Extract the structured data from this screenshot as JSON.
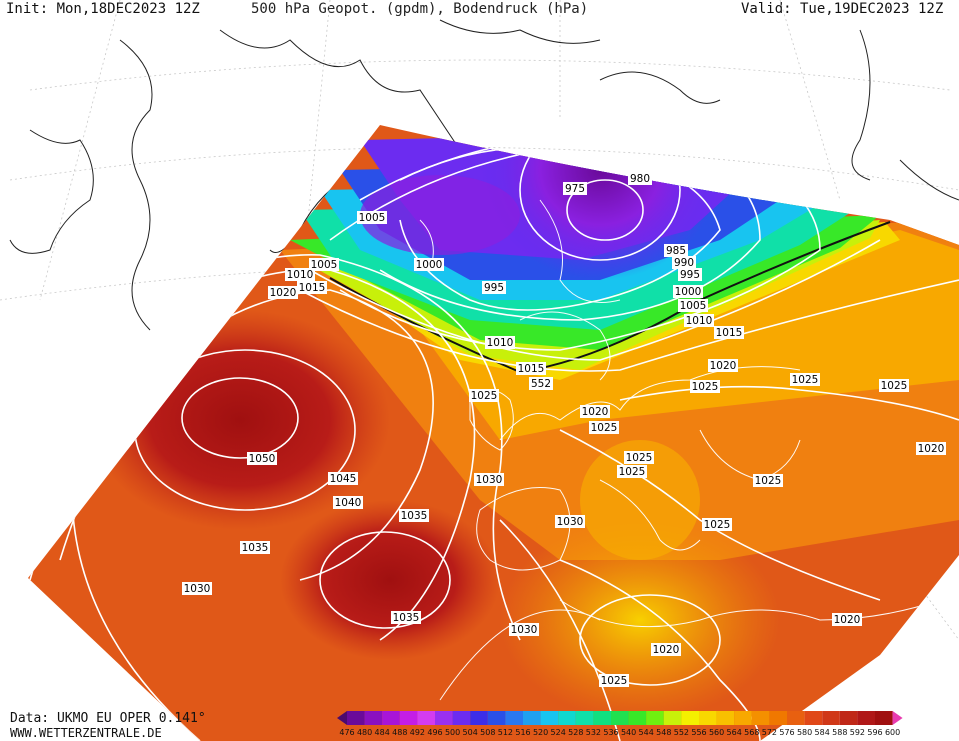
{
  "header": {
    "init": "Init: Mon,18DEC2023 12Z",
    "title": "500 hPa Geopot. (gpdm), Bodendruck (hPa)",
    "valid": "Valid: Tue,19DEC2023 12Z"
  },
  "footer": {
    "data": "Data: UKMO EU OPER 0.141°",
    "site": "WWW.WETTERZENTRALE.DE"
  },
  "legend": {
    "values": [
      "476",
      "480",
      "484",
      "488",
      "492",
      "496",
      "500",
      "504",
      "508",
      "512",
      "516",
      "520",
      "524",
      "528",
      "532",
      "536",
      "540",
      "544",
      "548",
      "552",
      "556",
      "560",
      "564",
      "568",
      "572",
      "576",
      "580",
      "584",
      "588",
      "592",
      "596",
      "600"
    ],
    "colors": [
      "#4a0a6e",
      "#6a0a9a",
      "#8a10c0",
      "#a815d8",
      "#c41ee6",
      "#d43cf0",
      "#9a30f0",
      "#6c2cf0",
      "#3c2ee8",
      "#2a50e8",
      "#2a78f0",
      "#20a0f0",
      "#18c4f0",
      "#10d8d0",
      "#10e0a8",
      "#10e080",
      "#20e050",
      "#38e828",
      "#70f010",
      "#c8f00a",
      "#f4f000",
      "#f8d800",
      "#f8c000",
      "#f8a800",
      "#f49000",
      "#f07800",
      "#e86010",
      "#e04818",
      "#d03818",
      "#c02818",
      "#b01818",
      "#a01010",
      "#e83cb0"
    ]
  },
  "map": {
    "isobar_labels": [
      "1005",
      "1005",
      "1000",
      "995",
      "975",
      "980",
      "985",
      "990",
      "995",
      "1000",
      "1005",
      "1010",
      "1015",
      "1010",
      "1005",
      "1015",
      "1020",
      "1010",
      "1015",
      "552",
      "1025",
      "1020",
      "1025",
      "1020",
      "1025",
      "1025",
      "1025",
      "1025",
      "1025",
      "1020",
      "1050",
      "1045",
      "1040",
      "1035",
      "1035",
      "1030",
      "1030",
      "1030",
      "1035",
      "1030",
      "1025",
      "1020",
      "1020",
      "1025",
      "1025"
    ]
  }
}
